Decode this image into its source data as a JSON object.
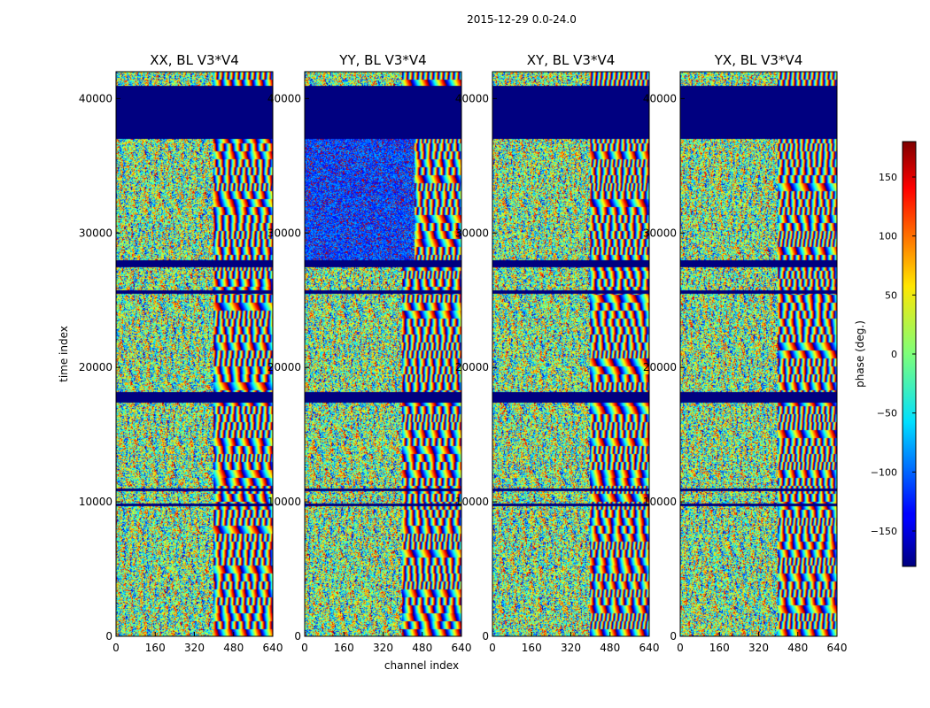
{
  "chart_data": {
    "type": "heatmap",
    "title": "2015-12-29 0.0-24.0",
    "xlabel": "channel index",
    "ylabel": "time index",
    "xlim": [
      0,
      640
    ],
    "ylim": [
      0,
      42000
    ],
    "x_ticks": [
      "0",
      "160",
      "320",
      "480",
      "640"
    ],
    "y_ticks": [
      "0",
      "10000",
      "20000",
      "30000",
      "40000"
    ],
    "panels": [
      {
        "title": "XX, BL V3*V4"
      },
      {
        "title": "YY, BL V3*V4"
      },
      {
        "title": "XY, BL V3*V4"
      },
      {
        "title": "YX, BL V3*V4"
      }
    ],
    "colorbar": {
      "label": "phase (deg.)",
      "range": [
        -180,
        180
      ],
      "ticks": [
        "150",
        "100",
        "50",
        "0",
        "−50",
        "−100",
        "−150"
      ],
      "colormap": "jet"
    },
    "flagged_time_bands": [
      [
        37000,
        41000
      ],
      [
        27500,
        28000
      ],
      [
        25500,
        25800
      ],
      [
        17400,
        18200
      ],
      [
        10850,
        11000
      ],
      [
        9700,
        9900
      ]
    ]
  }
}
